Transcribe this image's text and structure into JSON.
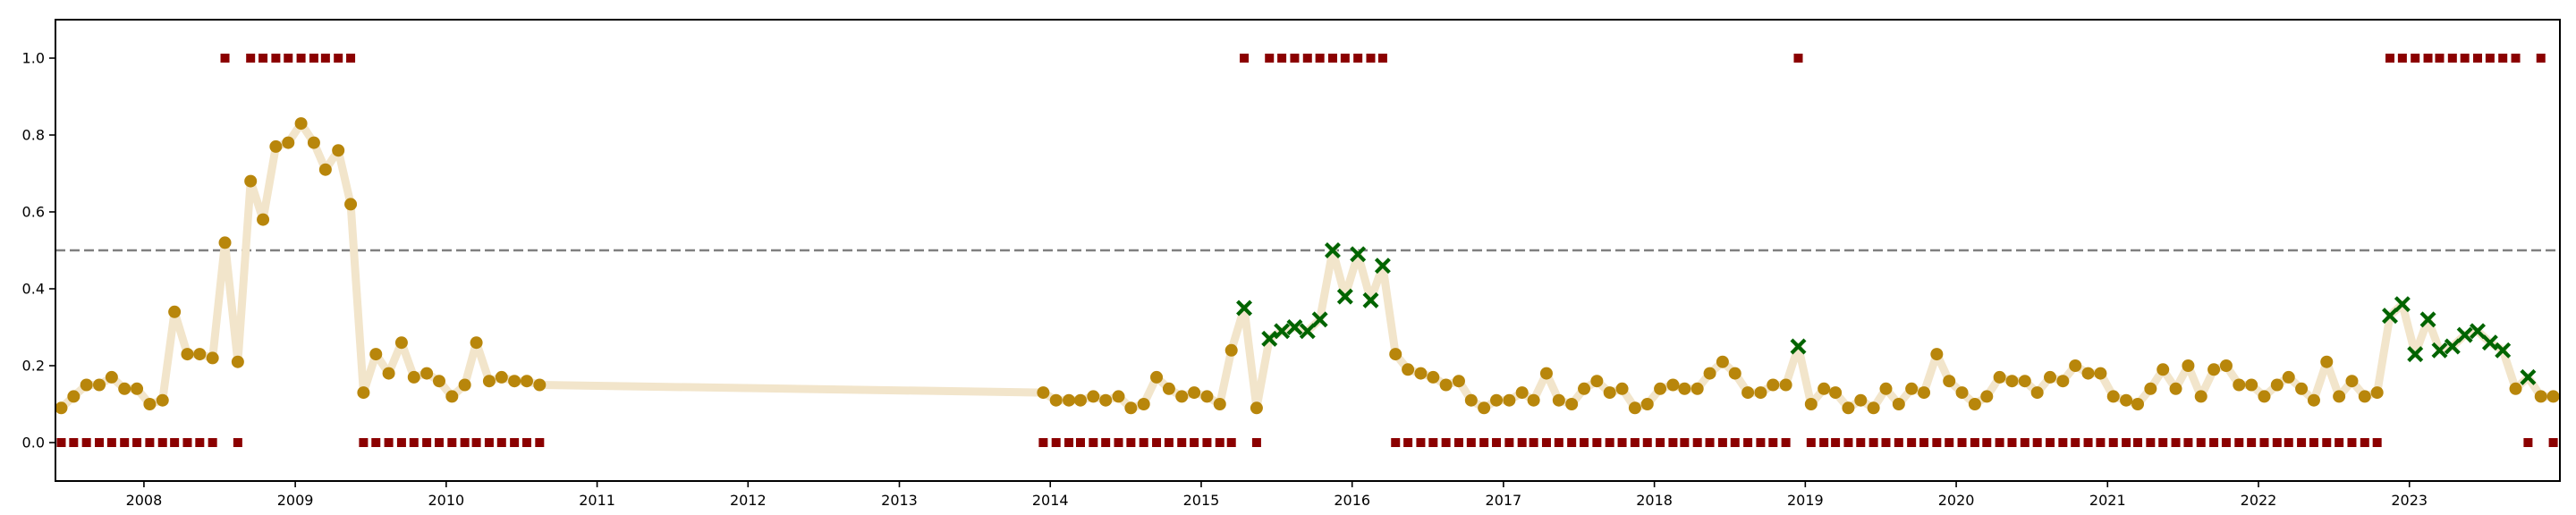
{
  "colors": {
    "background": "#ffffff",
    "line": "#f2e5cb",
    "normal_point": "#b8860b",
    "anomaly_point": "#006400",
    "label_marker": "#8b0000",
    "threshold": "#808080"
  },
  "chart_data": {
    "type": "scatter",
    "title": "",
    "xlabel": "",
    "ylabel": "",
    "grid": false,
    "legend": "none",
    "xlim": [
      "2007-06-01",
      "2023-12-31"
    ],
    "ylim": [
      -0.1,
      1.1
    ],
    "x_ticks": [
      "2008",
      "2009",
      "2010",
      "2011",
      "2012",
      "2013",
      "2014",
      "2015",
      "2016",
      "2017",
      "2018",
      "2019",
      "2020",
      "2021",
      "2022",
      "2023"
    ],
    "y_ticks": [
      "0.0",
      "0.2",
      "0.4",
      "0.6",
      "0.8",
      "1.0"
    ],
    "threshold": 0.5,
    "series": [
      {
        "start": "2007-06",
        "values": [
          0.09,
          0.12,
          0.15,
          0.15,
          0.17,
          0.14,
          0.14,
          0.1,
          0.11,
          0.34,
          0.23,
          0.23,
          0.22,
          0.52,
          0.21,
          0.68,
          0.58,
          0.77,
          0.78,
          0.83,
          0.78,
          0.71,
          0.76,
          0.62,
          0.13,
          0.23,
          0.18,
          0.26,
          0.17,
          0.18,
          0.16,
          0.12,
          0.15,
          0.26,
          0.16,
          0.17,
          0.16,
          0.16,
          0.15
        ],
        "flags": [
          0,
          0,
          0,
          0,
          0,
          0,
          0,
          0,
          0,
          0,
          0,
          0,
          0,
          0,
          0,
          0,
          0,
          0,
          0,
          0,
          0,
          0,
          0,
          0,
          0,
          0,
          0,
          0,
          0,
          0,
          0,
          0,
          0,
          0,
          0,
          0,
          0,
          0,
          0
        ],
        "labels": [
          0,
          0,
          0,
          0,
          0,
          0,
          0,
          0,
          0,
          0,
          0,
          0,
          0,
          1,
          0,
          1,
          1,
          1,
          1,
          1,
          1,
          1,
          1,
          1,
          0,
          0,
          0,
          0,
          0,
          0,
          0,
          0,
          0,
          0,
          0,
          0,
          0,
          0,
          0
        ]
      },
      {
        "start": "2013-12",
        "values": [
          0.13,
          0.11,
          0.11,
          0.11,
          0.12,
          0.11,
          0.12,
          0.09,
          0.1,
          0.17,
          0.14,
          0.12,
          0.13,
          0.12,
          0.1,
          0.24,
          0.35,
          0.09,
          0.27,
          0.29,
          0.3,
          0.29,
          0.32,
          0.5,
          0.38,
          0.49,
          0.37,
          0.46,
          0.23,
          0.19,
          0.18,
          0.17,
          0.15,
          0.16,
          0.11,
          0.09,
          0.11,
          0.11,
          0.13,
          0.11,
          0.18,
          0.11,
          0.1,
          0.14,
          0.16,
          0.13,
          0.14,
          0.09,
          0.1,
          0.14,
          0.15,
          0.14,
          0.14,
          0.18,
          0.21,
          0.18,
          0.13,
          0.13,
          0.15,
          0.15,
          0.25,
          0.1,
          0.14,
          0.13,
          0.09,
          0.11,
          0.09,
          0.14,
          0.1,
          0.14,
          0.13,
          0.23,
          0.16,
          0.13,
          0.1,
          0.12,
          0.17,
          0.16,
          0.16,
          0.13,
          0.17,
          0.16,
          0.2,
          0.18,
          0.18,
          0.12,
          0.11,
          0.1,
          0.14,
          0.19,
          0.14,
          0.2,
          0.12,
          0.19,
          0.2,
          0.15,
          0.15,
          0.12,
          0.15,
          0.17,
          0.14,
          0.11,
          0.21,
          0.12,
          0.16,
          0.12,
          0.13,
          0.33,
          0.36,
          0.23,
          0.32,
          0.24,
          0.25,
          0.28,
          0.29,
          0.26,
          0.24,
          0.14,
          0.17,
          0.12,
          0.12
        ],
        "flags": [
          0,
          0,
          0,
          0,
          0,
          0,
          0,
          0,
          0,
          0,
          0,
          0,
          0,
          0,
          0,
          0,
          1,
          0,
          1,
          1,
          1,
          1,
          1,
          1,
          1,
          1,
          1,
          1,
          0,
          0,
          0,
          0,
          0,
          0,
          0,
          0,
          0,
          0,
          0,
          0,
          0,
          0,
          0,
          0,
          0,
          0,
          0,
          0,
          0,
          0,
          0,
          0,
          0,
          0,
          0,
          0,
          0,
          0,
          0,
          0,
          1,
          0,
          0,
          0,
          0,
          0,
          0,
          0,
          0,
          0,
          0,
          0,
          0,
          0,
          0,
          0,
          0,
          0,
          0,
          0,
          0,
          0,
          0,
          0,
          0,
          0,
          0,
          0,
          0,
          0,
          0,
          0,
          0,
          0,
          0,
          0,
          0,
          0,
          0,
          0,
          0,
          0,
          0,
          0,
          0,
          0,
          0,
          1,
          1,
          1,
          1,
          1,
          1,
          1,
          1,
          1,
          1,
          0,
          1,
          0,
          0
        ],
        "labels": [
          0,
          0,
          0,
          0,
          0,
          0,
          0,
          0,
          0,
          0,
          0,
          0,
          0,
          0,
          0,
          0,
          1,
          0,
          1,
          1,
          1,
          1,
          1,
          1,
          1,
          1,
          1,
          1,
          0,
          0,
          0,
          0,
          0,
          0,
          0,
          0,
          0,
          0,
          0,
          0,
          0,
          0,
          0,
          0,
          0,
          0,
          0,
          0,
          0,
          0,
          0,
          0,
          0,
          0,
          0,
          0,
          0,
          0,
          0,
          0,
          1,
          0,
          0,
          0,
          0,
          0,
          0,
          0,
          0,
          0,
          0,
          0,
          0,
          0,
          0,
          0,
          0,
          0,
          0,
          0,
          0,
          0,
          0,
          0,
          0,
          0,
          0,
          0,
          0,
          0,
          0,
          0,
          0,
          0,
          0,
          0,
          0,
          0,
          0,
          0,
          0,
          0,
          0,
          0,
          0,
          0,
          0,
          1,
          1,
          1,
          1,
          1,
          1,
          1,
          1,
          1,
          1,
          1,
          0,
          1,
          0
        ]
      }
    ]
  }
}
